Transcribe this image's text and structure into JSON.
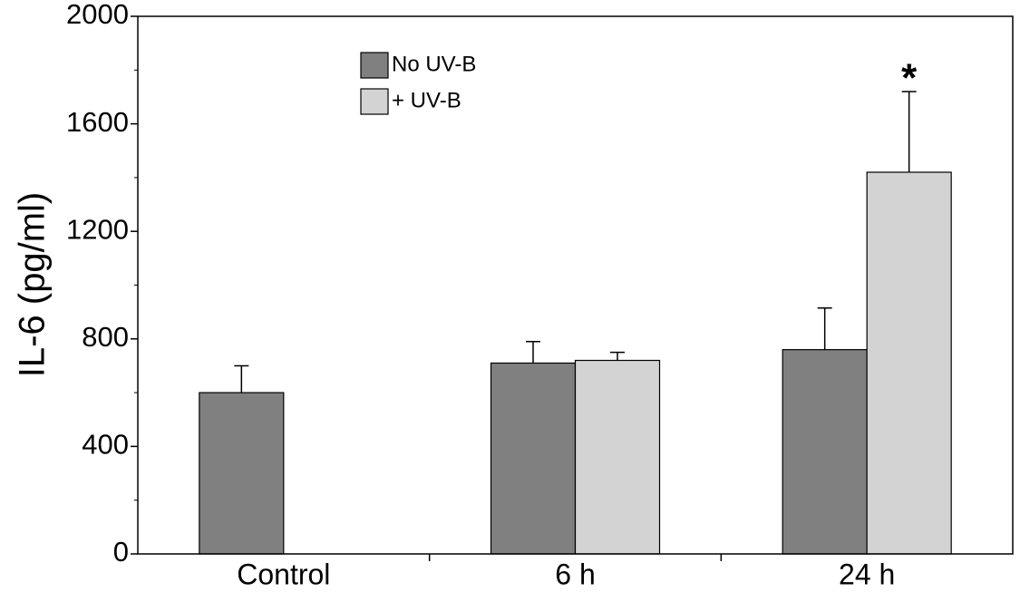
{
  "chart_data": {
    "type": "bar",
    "y_label": "IL-6 (pg/ml)",
    "categories": [
      "Control",
      "6 h",
      "24 h"
    ],
    "series": [
      {
        "name": "No UV-B",
        "color": "#808080",
        "values": [
          600,
          710,
          760
        ],
        "errors": [
          100,
          80,
          155
        ]
      },
      {
        "name": "+ UV-B",
        "color": "#d3d3d3",
        "values": [
          null,
          720,
          1420
        ],
        "errors": [
          null,
          30,
          300
        ]
      }
    ],
    "annotation": "*",
    "ylim": [
      0,
      2000
    ],
    "yticks": [
      0,
      400,
      800,
      1200,
      1600,
      2000
    ],
    "yminorticks": [
      200,
      600,
      1000,
      1400,
      1800
    ],
    "legend": "top-left"
  }
}
